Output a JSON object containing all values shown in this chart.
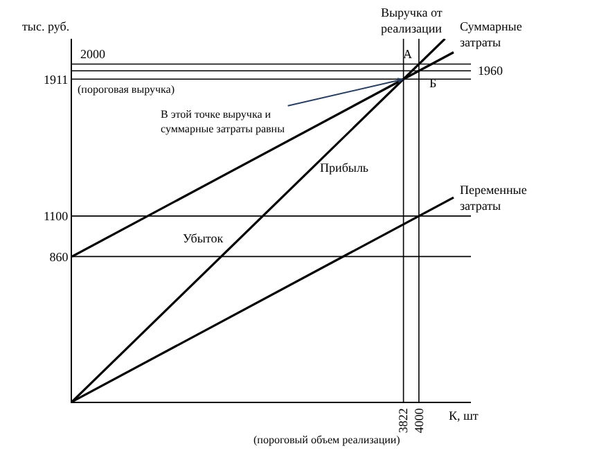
{
  "chart_data": {
    "type": "line",
    "ylabel": "тыс. руб.",
    "xlabel": "К, шт",
    "xlim": [
      0,
      4600
    ],
    "ylim": [
      0,
      2150
    ],
    "xticks": [
      3822,
      4000
    ],
    "yticks": [
      860,
      1100,
      1911
    ],
    "marker": "none",
    "line_style": "solid",
    "series": [
      {
        "name": "Выручка от\nреализации",
        "color": "#000000",
        "x": [
          0,
          4300
        ],
        "values": [
          0,
          2150
        ]
      },
      {
        "name": "Суммарные\nзатраты",
        "color": "#000000",
        "x": [
          0,
          4400
        ],
        "values": [
          860,
          2070
        ]
      },
      {
        "name": "Переменные\nзатраты",
        "color": "#000000",
        "x": [
          0,
          4400
        ],
        "values": [
          0,
          1210
        ]
      }
    ],
    "ref_lines": [
      {
        "axis": "y",
        "value": 2000,
        "label": "2000"
      },
      {
        "axis": "y",
        "value": 1960,
        "label": "1960"
      },
      {
        "axis": "y",
        "value": 1911
      },
      {
        "axis": "y",
        "value": 1100
      },
      {
        "axis": "y",
        "value": 860
      },
      {
        "axis": "x",
        "value": 3822
      },
      {
        "axis": "x",
        "value": 4000
      }
    ],
    "annotations": [
      {
        "text": "В этой точке выручка и\nсуммарные затраты равны",
        "x": 3822,
        "y": 1911
      },
      {
        "text": "(пороговая выручка)",
        "x": 0,
        "y": 1911
      },
      "(пороговый объем реализации)",
      {
        "text": "А",
        "x": 4000,
        "y": 2000
      },
      {
        "text": "Б",
        "x": 4000,
        "y": 1960
      },
      "Прибыль",
      "Убыток"
    ]
  }
}
